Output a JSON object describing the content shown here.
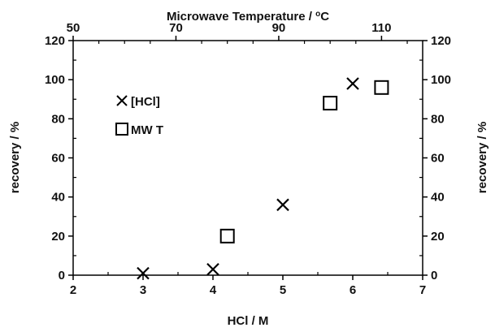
{
  "chart_data": {
    "type": "scatter",
    "top_axis_title": "Microwave Temperature / °C",
    "top_axis_title_main": "Microwave Temperature / ",
    "top_axis_title_sup": "o",
    "top_axis_title_unit": "C",
    "xlabel": "HCl / M",
    "ylabel": "recovery / %",
    "ylabel_right": "recovery / %",
    "xlim": [
      2,
      7
    ],
    "ylim": [
      0,
      120
    ],
    "top_xlim": [
      50,
      118
    ],
    "x_ticks": [
      2,
      3,
      4,
      5,
      6,
      7
    ],
    "top_ticks": [
      50,
      70,
      90,
      110
    ],
    "y_ticks": [
      0,
      20,
      40,
      60,
      80,
      100,
      120
    ],
    "grid": false,
    "legend_position": "top-left",
    "series": [
      {
        "name": "[HCl]",
        "marker": "x",
        "axis": "bottom",
        "x": [
          3,
          4,
          5,
          6
        ],
        "y": [
          1,
          3,
          36,
          98
        ]
      },
      {
        "name": "MW T",
        "marker": "square",
        "axis": "top",
        "x": [
          80,
          100,
          110
        ],
        "y": [
          20,
          88,
          96
        ]
      }
    ]
  }
}
